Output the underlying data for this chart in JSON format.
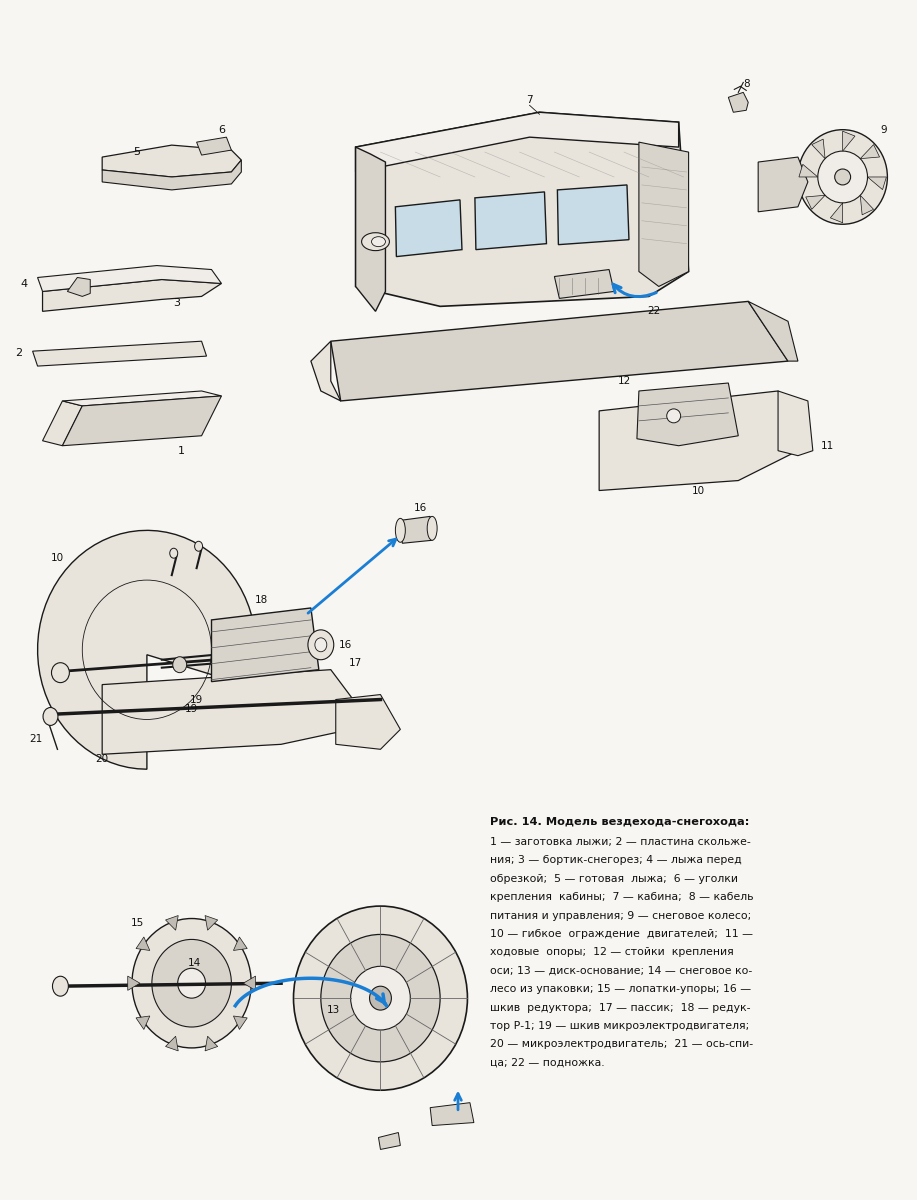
{
  "page_bg": "#f8f6f2",
  "line_color": "#1a1a1a",
  "fill_light": "#e8e4dc",
  "fill_mid": "#d8d4cc",
  "fill_dark": "#c0bcb4",
  "fill_white": "#f0ede8",
  "blue_arrow": "#1a7fd4",
  "font_color": "#111111",
  "title_bold": "Рис. 14. Модель вездехода-снегохода:",
  "caption_lines": [
    "1 — заготовка лыжи; 2 — пластина скольже-",
    "ния; 3 — бортик-снегорез; 4 — лыжа перед",
    "обрезкой;  5 — готовая  лыжа;  6 — уголки",
    "крепления  кабины;  7 — кабина;  8 — кабель",
    "питания и управления; 9 — снеговое колесо;",
    "10 — гибкое  ограждение  двигателей;  11 —",
    "ходовые  опоры;  12 — стойки  крепления",
    "оси; 13 — диск-основание; 14 — снеговое ко-",
    "лесо из упаковки; 15 — лопатки-упоры; 16 —",
    "шкив  редуктора;  17 — пассик;  18 — редук-",
    "тор Р-1; 19 — шкив микроэлектродвигателя;",
    "20 — микроэлектродвигатель;  21 — ось-спи-",
    "ца; 22 — подножка."
  ],
  "figsize": [
    9.17,
    12.0
  ],
  "dpi": 100
}
